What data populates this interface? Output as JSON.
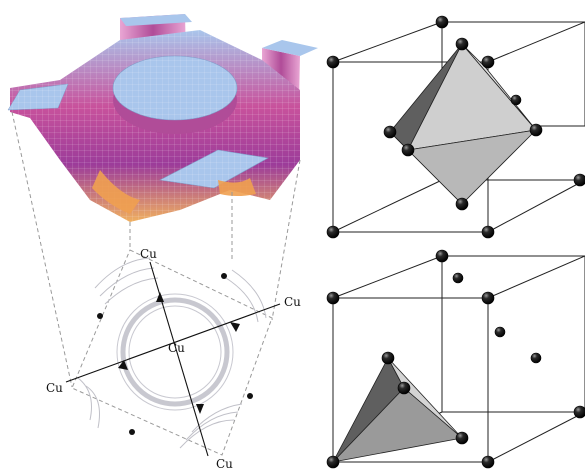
{
  "colors": {
    "surface_top": "#a9c6ec",
    "surface_mid": "#c8529c",
    "surface_low": "#f0b060",
    "polyhedron_light": "#c9c9c9",
    "polyhedron_dark": "#6f6f6f",
    "atom": "#111111"
  },
  "contour_panel": {
    "labels": {
      "top": "Cu",
      "right": "Cu",
      "center": "Cu",
      "left": "Cu",
      "bottom": "Cu"
    }
  },
  "panels": {
    "surface_plot": "3d-potential-surface",
    "contour_map": "contour-projection",
    "octahedral_cell": "fcc-cell-octahedral-site",
    "tetrahedral_cell": "fcc-cell-tetrahedral-site"
  }
}
